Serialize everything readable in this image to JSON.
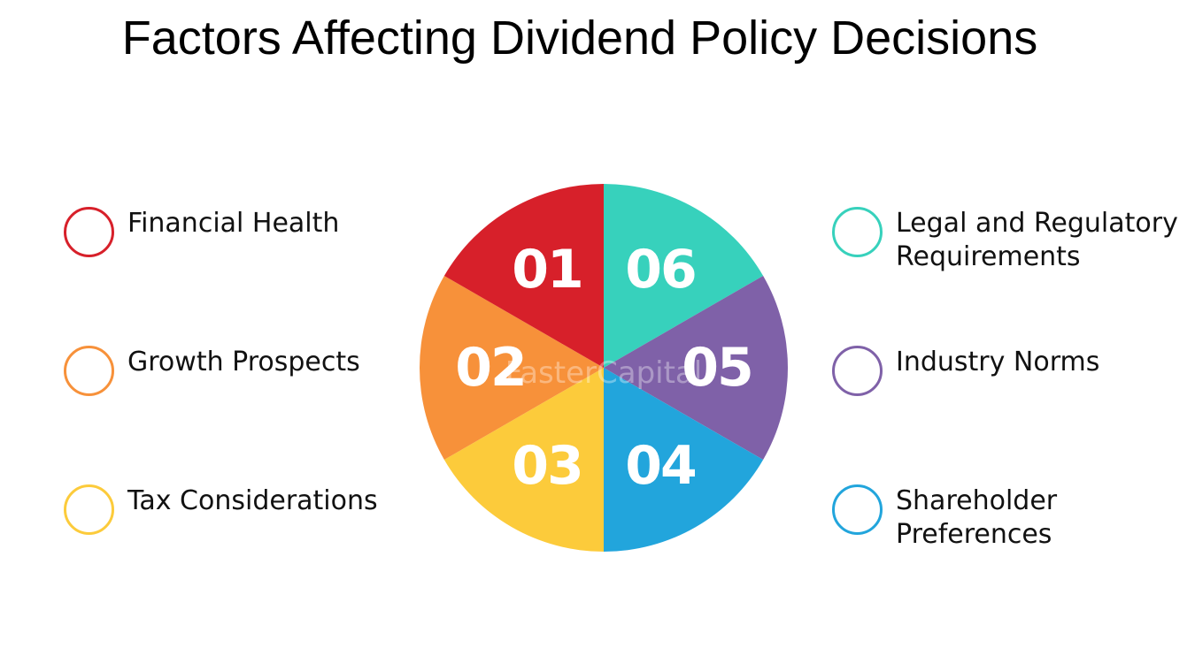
{
  "title": "Factors Affecting Dividend Policy Decisions",
  "watermark": "FasterCapital",
  "factors": [
    {
      "number": "01",
      "label_lines": [
        "Financial Health"
      ],
      "color": "#D7202A"
    },
    {
      "number": "02",
      "label_lines": [
        "Growth Prospects"
      ],
      "color": "#F7913A"
    },
    {
      "number": "03",
      "label_lines": [
        "Tax Considerations"
      ],
      "color": "#FCCB3B"
    },
    {
      "number": "04",
      "label_lines": [
        "Shareholder",
        "Preferences"
      ],
      "color": "#22A5DC"
    },
    {
      "number": "05",
      "label_lines": [
        "Industry Norms"
      ],
      "color": "#7F61A8"
    },
    {
      "number": "06",
      "label_lines": [
        "Legal and Regulatory",
        "Requirements"
      ],
      "color": "#37D1BC"
    }
  ]
}
